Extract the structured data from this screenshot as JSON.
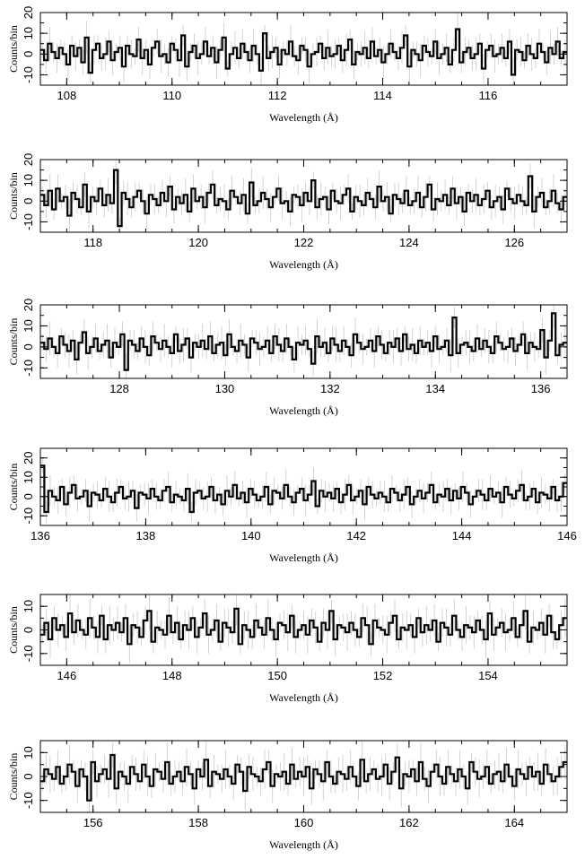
{
  "chart_data": [
    {
      "type": "line",
      "xlabel": "Wavelength (Å)",
      "ylabel": "Counts/bin",
      "xlim": [
        107.5,
        117.5
      ],
      "ylim": [
        -15,
        20
      ],
      "xticks": [
        "108",
        "110",
        "112",
        "114",
        "116"
      ],
      "yticks": [
        "-10",
        "0",
        "10",
        "20"
      ],
      "series": [
        {
          "values": [
            2,
            -3,
            5,
            1,
            -2,
            3,
            0,
            -5,
            4,
            -1,
            3,
            -4,
            8,
            -9,
            2,
            5,
            -2,
            0,
            6,
            -3,
            1,
            3,
            -6,
            4,
            0,
            -1,
            7,
            -2,
            2,
            -5,
            3,
            6,
            -1,
            0,
            -4,
            5,
            2,
            -3,
            9,
            -6,
            1,
            4,
            -2,
            0,
            6,
            -1,
            3,
            -4,
            2,
            8,
            -7,
            0,
            3,
            -2,
            5,
            1,
            -3,
            4,
            0,
            -8,
            10,
            -2,
            1,
            3,
            -5,
            2,
            0,
            6,
            -1,
            -3,
            4,
            2,
            -6,
            0,
            1,
            5,
            -2,
            3,
            -1,
            0,
            4,
            -3,
            2,
            7,
            -5,
            1,
            0,
            3,
            -2,
            6,
            -1,
            2,
            -4,
            0,
            5,
            1,
            -2,
            3,
            9,
            -6,
            2,
            0,
            -3,
            4,
            1,
            -1,
            6,
            -2,
            0,
            3,
            -5,
            2,
            12,
            -4,
            1,
            3,
            -2,
            0,
            5,
            -7,
            2,
            4,
            -1,
            0,
            3,
            -2,
            6,
            -10,
            2,
            1,
            -3,
            4,
            0,
            -2,
            5,
            1,
            -4,
            3,
            0,
            6,
            -2,
            1
          ]
        }
      ]
    },
    {
      "type": "line",
      "xlabel": "Wavelength (Å)",
      "ylabel": "Counts/bin",
      "xlim": [
        117,
        127
      ],
      "ylim": [
        -15,
        20
      ],
      "xticks": [
        "118",
        "120",
        "122",
        "124",
        "126"
      ],
      "yticks": [
        "-10",
        "0",
        "10",
        "20"
      ],
      "series": [
        {
          "values": [
            3,
            -2,
            5,
            -4,
            6,
            0,
            2,
            -7,
            4,
            1,
            -3,
            8,
            -5,
            2,
            0,
            6,
            -2,
            3,
            -1,
            15,
            -12,
            4,
            1,
            -3,
            2,
            5,
            0,
            -6,
            3,
            1,
            -2,
            4,
            0,
            7,
            -4,
            2,
            -1,
            3,
            -5,
            6,
            0,
            2,
            -3,
            4,
            8,
            -2,
            1,
            0,
            -4,
            5,
            2,
            -1,
            3,
            -6,
            9,
            -2,
            0,
            4,
            1,
            -3,
            2,
            6,
            -1,
            0,
            -5,
            3,
            2,
            -2,
            4,
            0,
            10,
            -3,
            1,
            2,
            -4,
            5,
            0,
            -1,
            3,
            6,
            -5,
            2,
            0,
            -2,
            4,
            1,
            -3,
            7,
            0,
            2,
            -6,
            3,
            1,
            -1,
            5,
            -2,
            0,
            4,
            -3,
            2,
            8,
            -4,
            1,
            0,
            3,
            -2,
            6,
            -1,
            2,
            -5,
            4,
            0,
            3,
            -2,
            1,
            5,
            -3,
            0,
            2,
            -4,
            6,
            1,
            -1,
            3,
            0,
            -2,
            12,
            -5,
            2,
            4,
            -3,
            0,
            5,
            -1,
            -4,
            2
          ]
        }
      ]
    },
    {
      "type": "line",
      "xlabel": "Wavelength (Å)",
      "ylabel": "Counts/bin",
      "xlim": [
        126.5,
        136.5
      ],
      "ylim": [
        -15,
        20
      ],
      "xticks": [
        "128",
        "130",
        "132",
        "134",
        "136"
      ],
      "yticks": [
        "-10",
        "0",
        "10",
        "20"
      ],
      "series": [
        {
          "values": [
            2,
            -1,
            4,
            0,
            -3,
            5,
            1,
            -2,
            3,
            -6,
            2,
            7,
            -3,
            0,
            4,
            -2,
            1,
            3,
            -5,
            2,
            0,
            6,
            -11,
            3,
            1,
            -2,
            4,
            0,
            -4,
            5,
            2,
            -1,
            3,
            0,
            -3,
            6,
            -2,
            1,
            4,
            -5,
            2,
            0,
            3,
            -1,
            5,
            -3,
            1,
            2,
            -4,
            6,
            0,
            -2,
            3,
            1,
            -5,
            4,
            2,
            -1,
            0,
            3,
            -3,
            5,
            1,
            -2,
            4,
            0,
            -6,
            2,
            1,
            3,
            -1,
            -8,
            5,
            0,
            2,
            -3,
            4,
            1,
            -2,
            3,
            0,
            -4,
            6,
            2,
            -1,
            0,
            3,
            -2,
            5,
            1,
            -3,
            2,
            0,
            4,
            -2,
            6,
            -1,
            1,
            -3,
            3,
            0,
            2,
            -2,
            5,
            -1,
            0,
            3,
            -4,
            14,
            -3,
            1,
            2,
            0,
            -2,
            4,
            -1,
            3,
            0,
            -3,
            5,
            2,
            -1,
            0,
            4,
            -2,
            1,
            6,
            -3,
            2,
            0,
            -1,
            8,
            -5,
            3,
            16,
            -4,
            1,
            2
          ]
        }
      ]
    },
    {
      "type": "line",
      "xlabel": "Wavelength (Å)",
      "ylabel": "Counts/bin",
      "xlim": [
        136,
        146
      ],
      "ylim": [
        -15,
        25
      ],
      "xticks": [
        "136",
        "138",
        "140",
        "142",
        "144",
        "146"
      ],
      "yticks": [
        "-10",
        "0",
        "10",
        "20"
      ],
      "series": [
        {
          "values": [
            16,
            -8,
            3,
            0,
            -2,
            5,
            -4,
            2,
            6,
            -1,
            0,
            3,
            -5,
            2,
            1,
            -2,
            4,
            0,
            -3,
            2,
            5,
            -1,
            0,
            3,
            -6,
            2,
            1,
            -1,
            4,
            0,
            -2,
            3,
            5,
            -3,
            1,
            0,
            -2,
            4,
            -8,
            2,
            3,
            -1,
            0,
            5,
            -2,
            1,
            -4,
            3,
            0,
            6,
            -1,
            2,
            -3,
            4,
            1,
            -2,
            0,
            5,
            -4,
            3,
            2,
            -1,
            6,
            0,
            -3,
            2,
            4,
            -2,
            1,
            8,
            -5,
            3,
            0,
            2,
            -1,
            4,
            -3,
            1,
            6,
            -2,
            0,
            3,
            -4,
            5,
            1,
            -1,
            2,
            0,
            -3,
            4,
            2,
            -2,
            1,
            5,
            -4,
            0,
            3,
            -1,
            2,
            6,
            -3,
            1,
            0,
            4,
            -2,
            3,
            -1,
            5,
            2,
            -4,
            0,
            3,
            1,
            -2,
            4,
            0,
            2,
            -3,
            5,
            1,
            -1,
            3,
            6,
            -2,
            0,
            4,
            -3,
            2,
            1,
            -1,
            5,
            -2,
            0,
            7
          ]
        }
      ]
    },
    {
      "type": "line",
      "xlabel": "Wavelength (Å)",
      "ylabel": "Counts/bin",
      "xlim": [
        145.5,
        155.5
      ],
      "ylim": [
        -15,
        15
      ],
      "xticks": [
        "146",
        "148",
        "150",
        "152",
        "154"
      ],
      "yticks": [
        "-10",
        "0",
        "10"
      ],
      "series": [
        {
          "values": [
            -2,
            3,
            -4,
            5,
            0,
            2,
            -3,
            7,
            -1,
            4,
            0,
            -2,
            5,
            1,
            -3,
            6,
            -4,
            2,
            0,
            3,
            -1,
            5,
            -6,
            2,
            1,
            -3,
            4,
            8,
            -5,
            1,
            0,
            -2,
            6,
            -1,
            3,
            -4,
            2,
            0,
            5,
            -3,
            1,
            7,
            -2,
            0,
            4,
            -5,
            3,
            1,
            -1,
            9,
            -6,
            2,
            0,
            -3,
            4,
            1,
            -2,
            5,
            0,
            -4,
            3,
            2,
            -1,
            6,
            -3,
            0,
            2,
            -2,
            4,
            1,
            -5,
            3,
            0,
            8,
            -4,
            2,
            1,
            -1,
            3,
            0,
            -3,
            5,
            2,
            -6,
            4,
            1,
            0,
            -2,
            3,
            6,
            -4,
            1,
            0,
            2,
            -3,
            5,
            -1,
            2,
            0,
            4,
            -5,
            3,
            1,
            -2,
            6,
            0,
            -3,
            2,
            1,
            -1,
            4,
            0,
            -4,
            7,
            -2,
            1,
            3,
            -1,
            0,
            5,
            -3,
            2,
            8,
            -5,
            1,
            0,
            3,
            -2,
            6,
            -1,
            -4,
            2,
            5
          ]
        }
      ]
    },
    {
      "type": "line",
      "xlabel": "Wavelength (Å)",
      "ylabel": "Counts/bin",
      "xlim": [
        155,
        165
      ],
      "ylim": [
        -15,
        15
      ],
      "xticks": [
        "156",
        "158",
        "160",
        "162",
        "164"
      ],
      "yticks": [
        "-10",
        "0",
        "10"
      ],
      "series": [
        {
          "values": [
            -2,
            3,
            1,
            -1,
            4,
            -3,
            0,
            5,
            2,
            -4,
            3,
            0,
            -10,
            6,
            -2,
            1,
            3,
            -1,
            9,
            -5,
            2,
            0,
            -3,
            4,
            1,
            -2,
            5,
            0,
            -4,
            3,
            2,
            -1,
            6,
            -3,
            0,
            2,
            -2,
            4,
            1,
            -5,
            3,
            0,
            7,
            -4,
            2,
            1,
            -1,
            3,
            0,
            -3,
            5,
            2,
            -6,
            4,
            1,
            0,
            -2,
            3,
            6,
            -4,
            1,
            0,
            2,
            -3,
            5,
            -1,
            2,
            0,
            4,
            -5,
            3,
            1,
            -2,
            6,
            0,
            -3,
            2,
            1,
            -1,
            4,
            0,
            -4,
            7,
            -2,
            1,
            3,
            -1,
            0,
            5,
            -3,
            2,
            8,
            -5,
            1,
            0,
            3,
            -2,
            6,
            -1,
            -4,
            2,
            5,
            0,
            -3,
            4,
            1,
            -2,
            3,
            0,
            -5,
            6,
            2,
            -1,
            0,
            4,
            -3,
            1,
            2,
            -2,
            5,
            0,
            -4,
            3,
            1,
            -1,
            4,
            0,
            2,
            -3,
            5,
            1,
            -2,
            0,
            4,
            6
          ]
        }
      ]
    }
  ]
}
